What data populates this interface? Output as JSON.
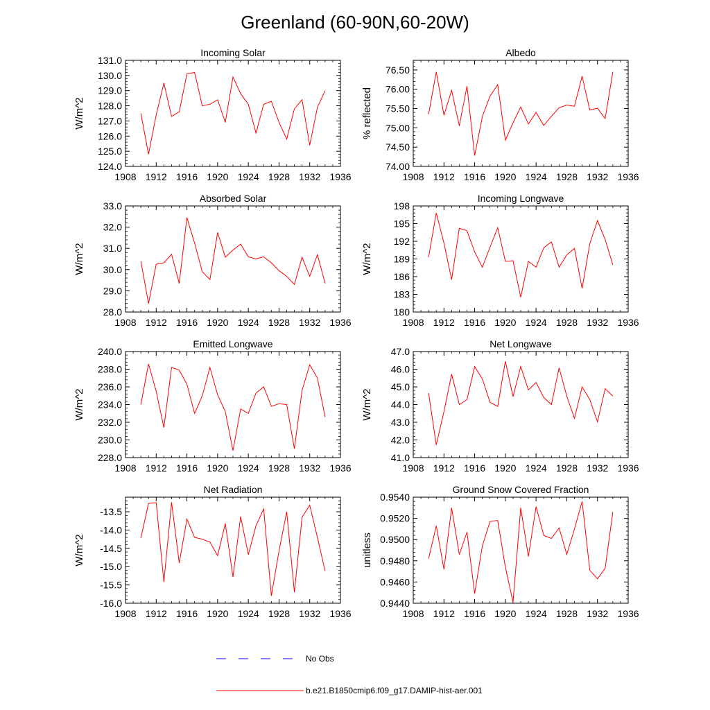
{
  "figure": {
    "title": "Greenland (60-90N,60-20W)",
    "legend": [
      {
        "label": "No Obs",
        "color": "#0000ff",
        "style": "dashed"
      },
      {
        "label": "b.e21.B1850cmip6.f09_g17.DAMIP-hist-aer.001",
        "color": "#ff0000",
        "style": "solid"
      }
    ]
  },
  "chart_data": [
    {
      "type": "line",
      "title": "Incoming Solar",
      "ylabel": "W/m^2",
      "xlim": [
        1908,
        1936
      ],
      "x_ticks": [
        1908,
        1912,
        1916,
        1920,
        1924,
        1928,
        1932,
        1936
      ],
      "x_tick_labels": [
        "1908",
        "1912",
        "1916",
        "1920",
        "1924",
        "1928",
        "1932",
        "1936"
      ],
      "ylim": [
        124.0,
        131.0
      ],
      "y_ticks": [
        124.0,
        125.0,
        126.0,
        127.0,
        128.0,
        129.0,
        130.0,
        131.0
      ],
      "y_tick_labels": [
        "124.0",
        "125.0",
        "126.0",
        "127.0",
        "128.0",
        "129.0",
        "130.0",
        "131.0"
      ],
      "x": [
        1910,
        1911,
        1912,
        1913,
        1914,
        1915,
        1916,
        1917,
        1918,
        1919,
        1920,
        1921,
        1922,
        1923,
        1924,
        1925,
        1926,
        1927,
        1928,
        1929,
        1930,
        1931,
        1932,
        1933,
        1934
      ],
      "series": [
        {
          "color": "#ff0000",
          "values": [
            127.5,
            124.8,
            127.4,
            129.5,
            127.3,
            127.6,
            130.1,
            130.2,
            128.0,
            128.1,
            128.4,
            126.9,
            129.9,
            128.8,
            128.1,
            126.2,
            128.1,
            128.3,
            126.9,
            125.8,
            127.8,
            128.4,
            125.4,
            127.9,
            129.0
          ]
        }
      ]
    },
    {
      "type": "line",
      "title": "Albedo",
      "ylabel": "% reflected",
      "xlim": [
        1908,
        1936
      ],
      "x_ticks": [
        1908,
        1912,
        1916,
        1920,
        1924,
        1928,
        1932,
        1936
      ],
      "x_tick_labels": [
        "1908",
        "1912",
        "1916",
        "1920",
        "1924",
        "1928",
        "1932",
        "1936"
      ],
      "ylim": [
        74.0,
        76.75
      ],
      "y_ticks": [
        74.0,
        74.5,
        75.0,
        75.5,
        76.0,
        76.5
      ],
      "y_tick_labels": [
        "74.00",
        "74.50",
        "75.00",
        "75.50",
        "76.00",
        "76.50"
      ],
      "x": [
        1910,
        1911,
        1912,
        1913,
        1914,
        1915,
        1916,
        1917,
        1918,
        1919,
        1920,
        1921,
        1922,
        1923,
        1924,
        1925,
        1926,
        1927,
        1928,
        1929,
        1930,
        1931,
        1932,
        1933,
        1934
      ],
      "series": [
        {
          "color": "#ff0000",
          "values": [
            75.35,
            76.45,
            75.33,
            75.97,
            75.05,
            76.08,
            74.28,
            75.29,
            75.82,
            76.12,
            74.68,
            75.13,
            75.54,
            75.1,
            75.4,
            75.06,
            75.3,
            75.52,
            75.59,
            75.56,
            76.34,
            75.46,
            75.51,
            75.24,
            76.45
          ]
        }
      ]
    },
    {
      "type": "line",
      "title": "Absorbed Solar",
      "ylabel": "W/m^2",
      "xlim": [
        1908,
        1936
      ],
      "x_ticks": [
        1908,
        1912,
        1916,
        1920,
        1924,
        1928,
        1932,
        1936
      ],
      "x_tick_labels": [
        "1908",
        "1912",
        "1916",
        "1920",
        "1924",
        "1928",
        "1932",
        "1936"
      ],
      "ylim": [
        28.0,
        33.0
      ],
      "y_ticks": [
        28.0,
        29.0,
        30.0,
        31.0,
        32.0,
        33.0
      ],
      "y_tick_labels": [
        "28.0",
        "29.0",
        "30.0",
        "31.0",
        "32.0",
        "33.0"
      ],
      "x": [
        1910,
        1911,
        1912,
        1913,
        1914,
        1915,
        1916,
        1917,
        1918,
        1919,
        1920,
        1921,
        1922,
        1923,
        1924,
        1925,
        1926,
        1927,
        1928,
        1929,
        1930,
        1931,
        1932,
        1933,
        1934
      ],
      "series": [
        {
          "color": "#ff0000",
          "values": [
            30.4,
            28.4,
            30.25,
            30.32,
            30.72,
            29.35,
            32.45,
            31.25,
            29.9,
            29.53,
            31.75,
            30.58,
            30.92,
            31.2,
            30.6,
            30.5,
            30.6,
            30.32,
            29.95,
            29.68,
            29.3,
            30.58,
            29.68,
            30.7,
            29.35
          ]
        }
      ]
    },
    {
      "type": "line",
      "title": "Incoming Longwave",
      "ylabel": "W/m^2",
      "xlim": [
        1908,
        1936
      ],
      "x_ticks": [
        1908,
        1912,
        1916,
        1920,
        1924,
        1928,
        1932,
        1936
      ],
      "x_tick_labels": [
        "1908",
        "1912",
        "1916",
        "1920",
        "1924",
        "1928",
        "1932",
        "1936"
      ],
      "ylim": [
        180,
        198
      ],
      "y_ticks": [
        180,
        183,
        186,
        189,
        192,
        195,
        198
      ],
      "y_tick_labels": [
        "180",
        "183",
        "186",
        "189",
        "192",
        "195",
        "198"
      ],
      "x": [
        1910,
        1911,
        1912,
        1913,
        1914,
        1915,
        1916,
        1917,
        1918,
        1919,
        1920,
        1921,
        1922,
        1923,
        1924,
        1925,
        1926,
        1927,
        1928,
        1929,
        1930,
        1931,
        1932,
        1933,
        1934
      ],
      "series": [
        {
          "color": "#ff0000",
          "values": [
            189.3,
            196.8,
            191.7,
            185.5,
            194.2,
            193.8,
            190.2,
            187.6,
            191.0,
            194.3,
            188.6,
            188.7,
            182.5,
            188.6,
            187.6,
            190.9,
            191.9,
            187.6,
            189.7,
            190.8,
            184.0,
            191.6,
            195.5,
            192.3,
            188.0
          ]
        }
      ]
    },
    {
      "type": "line",
      "title": "Emitted Longwave",
      "ylabel": "W/m^2",
      "xlim": [
        1908,
        1936
      ],
      "x_ticks": [
        1908,
        1912,
        1916,
        1920,
        1924,
        1928,
        1932,
        1936
      ],
      "x_tick_labels": [
        "1908",
        "1912",
        "1916",
        "1920",
        "1924",
        "1928",
        "1932",
        "1936"
      ],
      "ylim": [
        228.0,
        240.0
      ],
      "y_ticks": [
        228.0,
        230.0,
        232.0,
        234.0,
        236.0,
        238.0,
        240.0
      ],
      "y_tick_labels": [
        "228.0",
        "230.0",
        "232.0",
        "234.0",
        "236.0",
        "238.0",
        "240.0"
      ],
      "x": [
        1910,
        1911,
        1912,
        1913,
        1914,
        1915,
        1916,
        1917,
        1918,
        1919,
        1920,
        1921,
        1922,
        1923,
        1924,
        1925,
        1926,
        1927,
        1928,
        1929,
        1930,
        1931,
        1932,
        1933,
        1934
      ],
      "series": [
        {
          "color": "#ff0000",
          "values": [
            234.0,
            238.6,
            235.5,
            231.4,
            238.2,
            237.9,
            236.3,
            233.0,
            235.0,
            238.2,
            235.1,
            233.2,
            228.8,
            233.5,
            233.0,
            235.3,
            236.0,
            233.8,
            234.1,
            234.0,
            229.0,
            235.6,
            238.5,
            237.0,
            232.6
          ]
        }
      ]
    },
    {
      "type": "line",
      "title": "Net Longwave",
      "ylabel": "W/m^2",
      "xlim": [
        1908,
        1936
      ],
      "x_ticks": [
        1908,
        1912,
        1916,
        1920,
        1924,
        1928,
        1932,
        1936
      ],
      "x_tick_labels": [
        "1908",
        "1912",
        "1916",
        "1920",
        "1924",
        "1928",
        "1932",
        "1936"
      ],
      "ylim": [
        41.0,
        47.0
      ],
      "y_ticks": [
        41.0,
        42.0,
        43.0,
        44.0,
        45.0,
        46.0,
        47.0
      ],
      "y_tick_labels": [
        "41.0",
        "42.0",
        "43.0",
        "44.0",
        "45.0",
        "46.0",
        "47.0"
      ],
      "x": [
        1910,
        1911,
        1912,
        1913,
        1914,
        1915,
        1916,
        1917,
        1918,
        1919,
        1920,
        1921,
        1922,
        1923,
        1924,
        1925,
        1926,
        1927,
        1928,
        1929,
        1930,
        1931,
        1932,
        1933,
        1934
      ],
      "series": [
        {
          "color": "#ff0000",
          "values": [
            44.65,
            41.72,
            43.6,
            45.72,
            44.0,
            44.28,
            46.15,
            45.45,
            44.13,
            43.9,
            46.45,
            44.45,
            46.15,
            44.83,
            45.25,
            44.4,
            44.0,
            46.08,
            44.48,
            43.22,
            45.0,
            44.28,
            43.02,
            44.9,
            44.48
          ]
        }
      ]
    },
    {
      "type": "line",
      "title": "Net Radiation",
      "ylabel": "W/m^2",
      "xlim": [
        1908,
        1936
      ],
      "x_ticks": [
        1908,
        1912,
        1916,
        1920,
        1924,
        1928,
        1932,
        1936
      ],
      "x_tick_labels": [
        "1908",
        "1912",
        "1916",
        "1920",
        "1924",
        "1928",
        "1932",
        "1936"
      ],
      "ylim": [
        -16.0,
        -13.1
      ],
      "y_ticks": [
        -16.0,
        -15.5,
        -15.0,
        -14.5,
        -14.0,
        -13.5
      ],
      "y_tick_labels": [
        "-16.0",
        "-15.5",
        "-15.0",
        "-14.5",
        "-14.0",
        "-13.5"
      ],
      "x": [
        1910,
        1911,
        1912,
        1913,
        1914,
        1915,
        1916,
        1917,
        1918,
        1919,
        1920,
        1921,
        1922,
        1923,
        1924,
        1925,
        1926,
        1927,
        1928,
        1929,
        1930,
        1931,
        1932,
        1933,
        1934
      ],
      "series": [
        {
          "color": "#ff0000",
          "values": [
            -14.22,
            -13.27,
            -13.25,
            -15.42,
            -13.24,
            -14.9,
            -13.7,
            -14.2,
            -14.25,
            -14.33,
            -14.7,
            -13.82,
            -15.28,
            -13.63,
            -14.67,
            -13.88,
            -13.42,
            -15.8,
            -14.57,
            -13.5,
            -15.7,
            -13.65,
            -13.32,
            -14.2,
            -15.12
          ]
        }
      ]
    },
    {
      "type": "line",
      "title": "Ground Snow Covered Fraction",
      "ylabel": "unitless",
      "xlim": [
        1908,
        1936
      ],
      "x_ticks": [
        1908,
        1912,
        1916,
        1920,
        1924,
        1928,
        1932,
        1936
      ],
      "x_tick_labels": [
        "1908",
        "1912",
        "1916",
        "1920",
        "1924",
        "1928",
        "1932",
        "1936"
      ],
      "ylim": [
        0.944,
        0.954
      ],
      "y_ticks": [
        0.944,
        0.946,
        0.948,
        0.95,
        0.952,
        0.954
      ],
      "y_tick_labels": [
        "0.9440",
        "0.9460",
        "0.9480",
        "0.9500",
        "0.9520",
        "0.9540"
      ],
      "x": [
        1910,
        1911,
        1912,
        1913,
        1914,
        1915,
        1916,
        1917,
        1918,
        1919,
        1920,
        1921,
        1922,
        1923,
        1924,
        1925,
        1926,
        1927,
        1928,
        1929,
        1930,
        1931,
        1932,
        1933,
        1934
      ],
      "series": [
        {
          "color": "#ff0000",
          "values": [
            0.9482,
            0.9513,
            0.9472,
            0.953,
            0.9486,
            0.9507,
            0.9449,
            0.9494,
            0.9517,
            0.9518,
            0.9474,
            0.9441,
            0.953,
            0.9484,
            0.9531,
            0.9504,
            0.9501,
            0.9511,
            0.9486,
            0.951,
            0.9536,
            0.9471,
            0.9463,
            0.9473,
            0.9526
          ]
        }
      ]
    }
  ]
}
